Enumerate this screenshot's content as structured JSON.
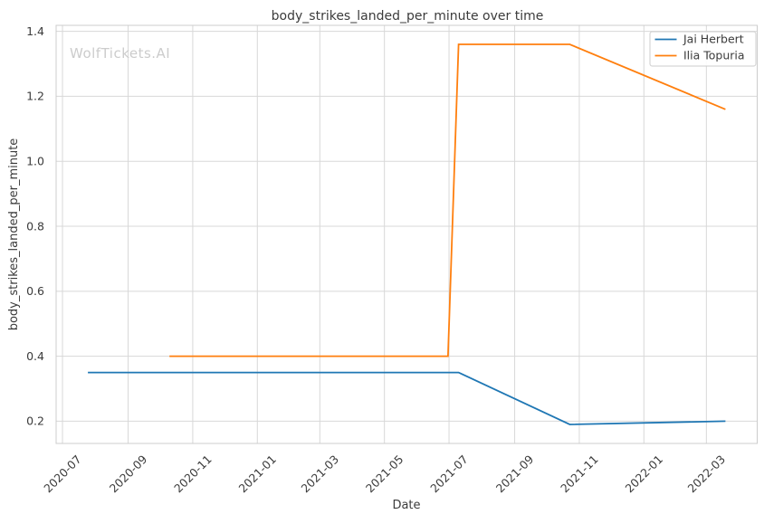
{
  "watermark": "WolfTickets.AI",
  "chart_data": {
    "type": "line",
    "title": "body_strikes_landed_per_minute over time",
    "xlabel": "Date",
    "ylabel": "body_strikes_landed_per_minute",
    "x_tick_labels": [
      "2020-07",
      "2020-09",
      "2020-11",
      "2021-01",
      "2021-03",
      "2021-05",
      "2021-07",
      "2021-09",
      "2021-11",
      "2022-01",
      "2022-03"
    ],
    "y_ticks": [
      0.2,
      0.4,
      0.6,
      0.8,
      1.0,
      1.2,
      1.4
    ],
    "xlim": [
      "2020-06-25",
      "2022-04-18"
    ],
    "ylim": [
      0.1315,
      1.4185
    ],
    "grid": true,
    "legend_loc": "upper right",
    "series": [
      {
        "name": "Jai Herbert",
        "color": "#1f77b4",
        "points": [
          [
            "2020-07-25",
            0.35
          ],
          [
            "2021-07-10",
            0.35
          ],
          [
            "2021-10-23",
            0.19
          ],
          [
            "2022-03-19",
            0.2
          ]
        ]
      },
      {
        "name": "Ilia Topuria",
        "color": "#ff7f0e",
        "points": [
          [
            "2020-10-10",
            0.4
          ],
          [
            "2021-06-30",
            0.4
          ],
          [
            "2021-07-10",
            1.36
          ],
          [
            "2021-10-23",
            1.36
          ],
          [
            "2022-03-19",
            1.16
          ]
        ]
      }
    ],
    "colors": {
      "background": "#ffffff",
      "grid": "#d8d8d8",
      "spine": "#cccccc",
      "text": "#3b3b3b",
      "watermark": "#cccccc",
      "legend_border": "#cccccc"
    }
  }
}
